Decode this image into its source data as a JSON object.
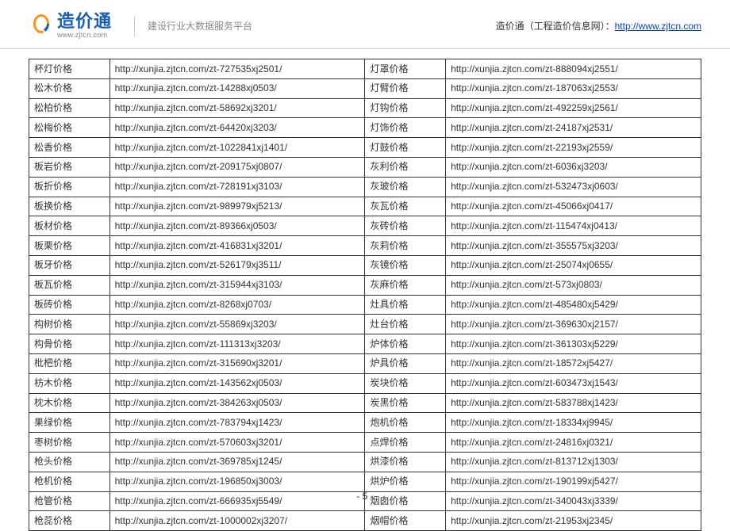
{
  "header": {
    "logo_cn": "造价通",
    "logo_url": "www.zjtcn.com",
    "slogan": "建设行业大数据服务平台",
    "right_text": "造价通（工程造价信息网）：",
    "right_link": "http://www.zjtcn.com"
  },
  "page_number": "- 5 -",
  "colors": {
    "logo_blue": "#1a5fb4",
    "logo_orange": "#f7941e",
    "link_blue": "#0645ad",
    "border": "#333333",
    "text": "#333333",
    "muted": "#888888"
  },
  "rows": [
    {
      "n1": "杯灯价格",
      "u1": "http://xunjia.zjtcn.com/zt-727535xj2501/",
      "n2": "灯罩价格",
      "u2": "http://xunjia.zjtcn.com/zt-888094xj2551/"
    },
    {
      "n1": "松木价格",
      "u1": "http://xunjia.zjtcn.com/zt-14288xj0503/",
      "n2": "灯臂价格",
      "u2": "http://xunjia.zjtcn.com/zt-187063xj2553/"
    },
    {
      "n1": "松柏价格",
      "u1": "http://xunjia.zjtcn.com/zt-58692xj3201/",
      "n2": "灯钩价格",
      "u2": "http://xunjia.zjtcn.com/zt-492259xj2561/"
    },
    {
      "n1": "松梅价格",
      "u1": "http://xunjia.zjtcn.com/zt-64420xj3203/",
      "n2": "灯饰价格",
      "u2": "http://xunjia.zjtcn.com/zt-24187xj2531/"
    },
    {
      "n1": "松香价格",
      "u1": "http://xunjia.zjtcn.com/zt-1022841xj1401/",
      "n2": "灯鼓价格",
      "u2": "http://xunjia.zjtcn.com/zt-22193xj2559/"
    },
    {
      "n1": "板岩价格",
      "u1": "http://xunjia.zjtcn.com/zt-209175xj0807/",
      "n2": "灰利价格",
      "u2": "http://xunjia.zjtcn.com/zt-6036xj3203/"
    },
    {
      "n1": "板折价格",
      "u1": "http://xunjia.zjtcn.com/zt-728191xj3103/",
      "n2": "灰玻价格",
      "u2": "http://xunjia.zjtcn.com/zt-532473xj0603/"
    },
    {
      "n1": "板换价格",
      "u1": "http://xunjia.zjtcn.com/zt-989979xj5213/",
      "n2": "灰瓦价格",
      "u2": "http://xunjia.zjtcn.com/zt-45066xj0417/"
    },
    {
      "n1": "板材价格",
      "u1": "http://xunjia.zjtcn.com/zt-89366xj0503/",
      "n2": "灰砖价格",
      "u2": "http://xunjia.zjtcn.com/zt-115474xj0413/"
    },
    {
      "n1": "板栗价格",
      "u1": "http://xunjia.zjtcn.com/zt-416831xj3201/",
      "n2": "灰莉价格",
      "u2": "http://xunjia.zjtcn.com/zt-355575xj3203/"
    },
    {
      "n1": "板牙价格",
      "u1": "http://xunjia.zjtcn.com/zt-526179xj3511/",
      "n2": "灰镜价格",
      "u2": "http://xunjia.zjtcn.com/zt-25074xj0655/"
    },
    {
      "n1": "板瓦价格",
      "u1": "http://xunjia.zjtcn.com/zt-315944xj3103/",
      "n2": "灰麻价格",
      "u2": "http://xunjia.zjtcn.com/zt-573xj0803/"
    },
    {
      "n1": "板砖价格",
      "u1": "http://xunjia.zjtcn.com/zt-8268xj0703/",
      "n2": "灶具价格",
      "u2": "http://xunjia.zjtcn.com/zt-485480xj5429/"
    },
    {
      "n1": "构树价格",
      "u1": "http://xunjia.zjtcn.com/zt-55869xj3203/",
      "n2": "灶台价格",
      "u2": "http://xunjia.zjtcn.com/zt-369630xj2157/"
    },
    {
      "n1": "构骨价格",
      "u1": "http://xunjia.zjtcn.com/zt-111313xj3203/",
      "n2": "炉体价格",
      "u2": "http://xunjia.zjtcn.com/zt-361303xj5229/"
    },
    {
      "n1": "枇杷价格",
      "u1": "http://xunjia.zjtcn.com/zt-315690xj3201/",
      "n2": "炉具价格",
      "u2": "http://xunjia.zjtcn.com/zt-18572xj5427/"
    },
    {
      "n1": "枋木价格",
      "u1": "http://xunjia.zjtcn.com/zt-143562xj0503/",
      "n2": "炭块价格",
      "u2": "http://xunjia.zjtcn.com/zt-603473xj1543/"
    },
    {
      "n1": "枕木价格",
      "u1": "http://xunjia.zjtcn.com/zt-384263xj0503/",
      "n2": "炭黑价格",
      "u2": "http://xunjia.zjtcn.com/zt-583788xj1423/"
    },
    {
      "n1": "果绿价格",
      "u1": "http://xunjia.zjtcn.com/zt-783794xj1423/",
      "n2": "炮机价格",
      "u2": "http://xunjia.zjtcn.com/zt-18334xj9945/"
    },
    {
      "n1": "枣树价格",
      "u1": "http://xunjia.zjtcn.com/zt-570603xj3201/",
      "n2": "点焊价格",
      "u2": "http://xunjia.zjtcn.com/zt-24816xj0321/"
    },
    {
      "n1": "枪头价格",
      "u1": "http://xunjia.zjtcn.com/zt-369785xj1245/",
      "n2": "烘漆价格",
      "u2": "http://xunjia.zjtcn.com/zt-813712xj1303/"
    },
    {
      "n1": "枪机价格",
      "u1": "http://xunjia.zjtcn.com/zt-196850xj3003/",
      "n2": "烘炉价格",
      "u2": "http://xunjia.zjtcn.com/zt-190199xj5427/"
    },
    {
      "n1": "枪管价格",
      "u1": "http://xunjia.zjtcn.com/zt-666935xj5549/",
      "n2": "烟囱价格",
      "u2": "http://xunjia.zjtcn.com/zt-340043xj3339/"
    },
    {
      "n1": "枪蕊价格",
      "u1": "http://xunjia.zjtcn.com/zt-1000002xj3207/",
      "n2": "烟帽价格",
      "u2": "http://xunjia.zjtcn.com/zt-21953xj2345/"
    }
  ]
}
